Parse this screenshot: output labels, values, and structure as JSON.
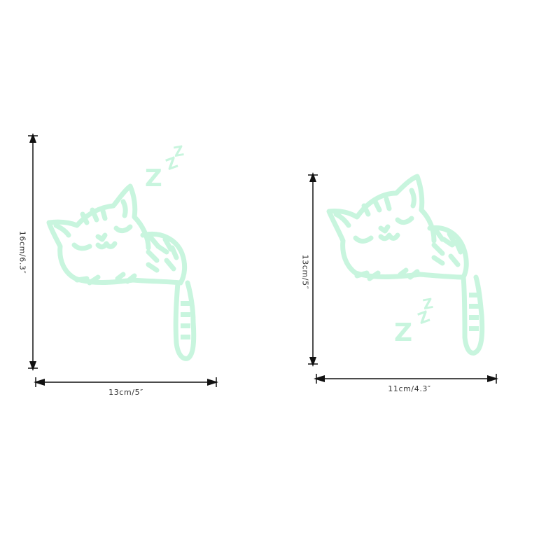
{
  "colors": {
    "sticker": "#c8f5de",
    "arrow": "#111111",
    "label": "#333333"
  },
  "stickers": [
    {
      "name": "left-cat-sticker",
      "height_label": "16cm/6.3″",
      "width_label": "13cm/5″",
      "zzz": [
        "Z",
        "Z",
        "Z"
      ],
      "icon": "sleeping-cat-icon"
    },
    {
      "name": "right-cat-sticker",
      "height_label": "13cm/5″",
      "width_label": "11cm/4.3″",
      "zzz": [
        "Z",
        "Z",
        "Z"
      ],
      "icon": "sleeping-cat-icon"
    }
  ]
}
